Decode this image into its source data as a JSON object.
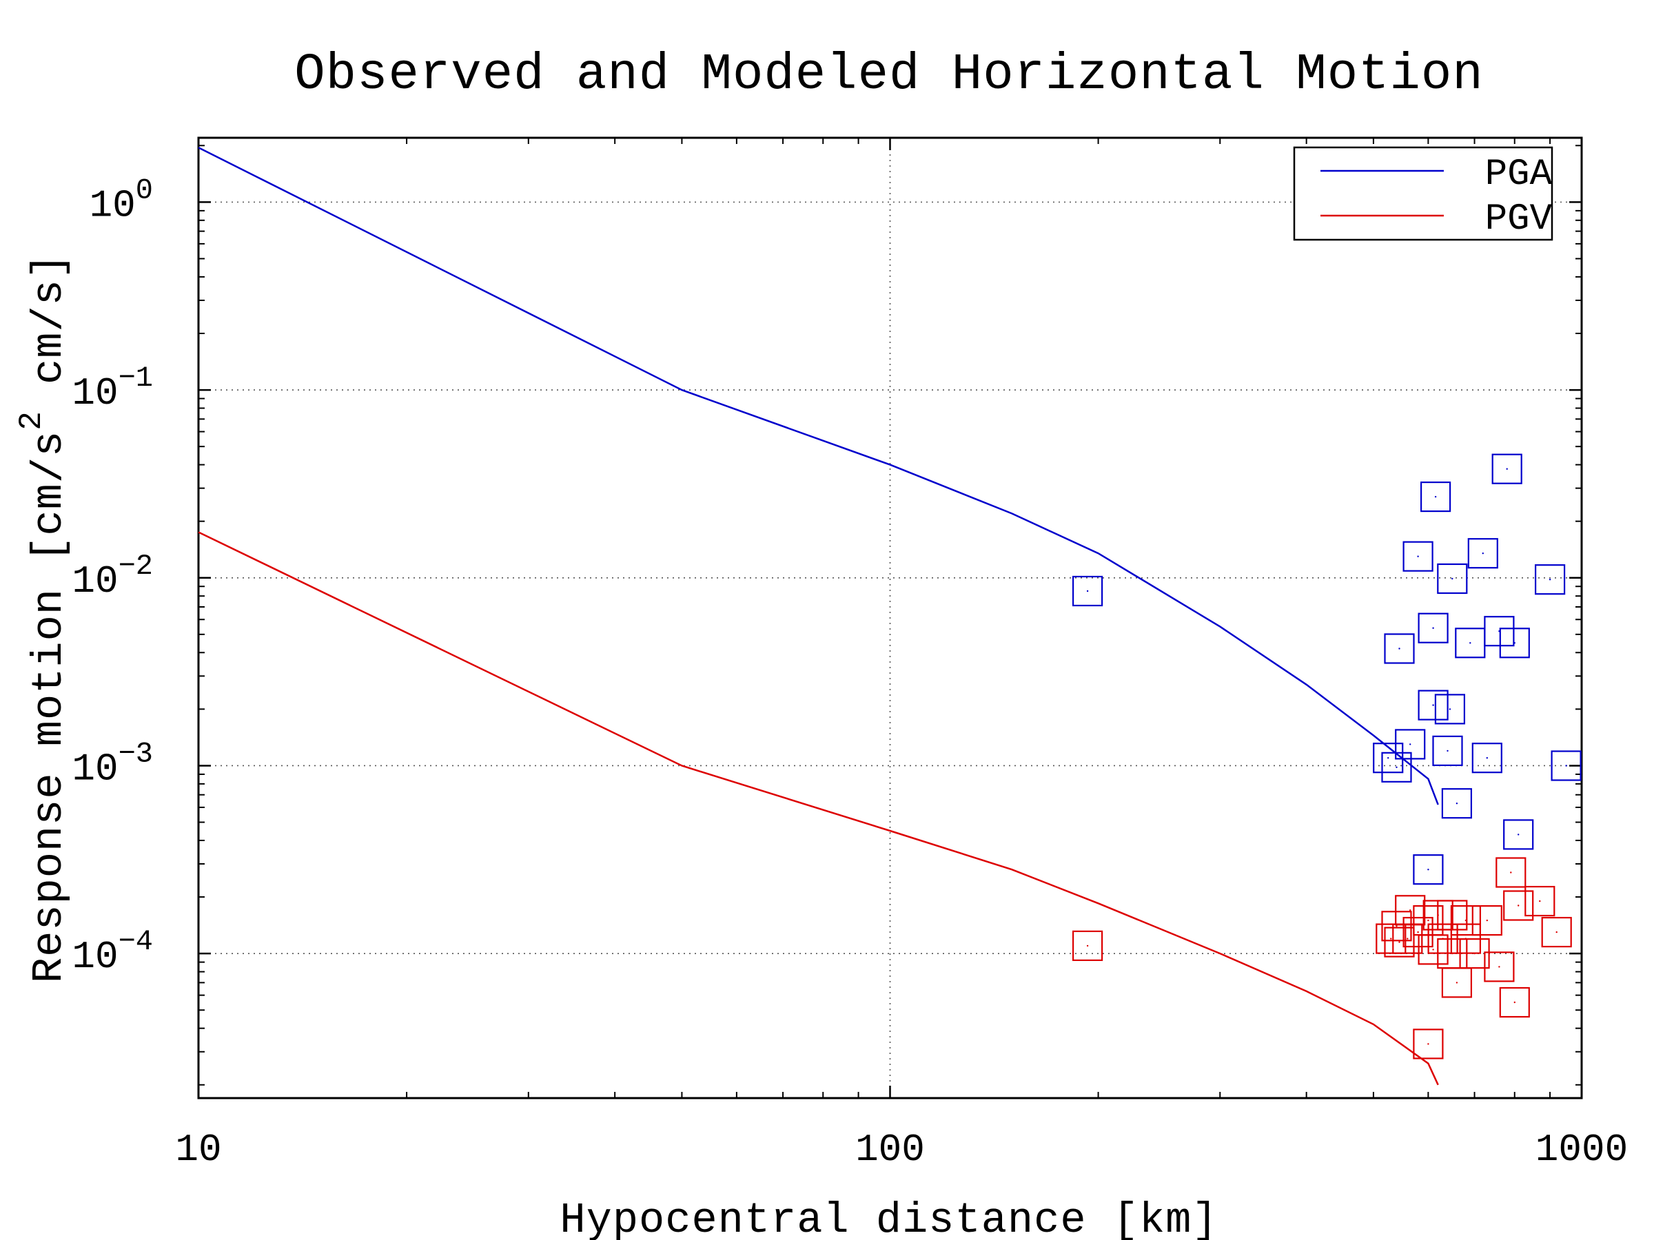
{
  "chart_data": {
    "type": "scatter",
    "title": "Observed and Modeled Horizontal Motion",
    "xlabel": "Hypocentral distance [km]",
    "ylabel": {
      "prefix": "Response motion [cm/s",
      "superscript": "2",
      "suffix": "  cm/s]"
    },
    "x_scale": "log",
    "y_scale": "log",
    "xlim": [
      10,
      1000
    ],
    "ylim": [
      1.7e-05,
      2.2
    ],
    "x_ticks": [
      {
        "value": 10,
        "label": "10"
      },
      {
        "value": 100,
        "label": "100"
      },
      {
        "value": 1000,
        "label": "1000"
      }
    ],
    "y_ticks": [
      {
        "value": 1,
        "base": "10",
        "exp": "0"
      },
      {
        "value": 0.1,
        "base": "10",
        "exp": "−1"
      },
      {
        "value": 0.01,
        "base": "10",
        "exp": "−2"
      },
      {
        "value": 0.001,
        "base": "10",
        "exp": "−3"
      },
      {
        "value": 0.0001,
        "base": "10",
        "exp": "−4"
      }
    ],
    "grid": true,
    "legend_position": "top-right",
    "series": [
      {
        "name": "PGA",
        "color": "#0000cc",
        "model_curve": [
          [
            10,
            1.95
          ],
          [
            50,
            0.1
          ],
          [
            100,
            0.04
          ],
          [
            150,
            0.022
          ],
          [
            200,
            0.0135
          ],
          [
            300,
            0.0055
          ],
          [
            400,
            0.0027
          ],
          [
            500,
            0.00145
          ],
          [
            600,
            0.00085
          ],
          [
            620,
            0.00062
          ]
        ],
        "observed": [
          [
            193,
            0.0085
          ],
          [
            780,
            0.038
          ],
          [
            615,
            0.027
          ],
          [
            580,
            0.013
          ],
          [
            720,
            0.0135
          ],
          [
            650,
            0.0099
          ],
          [
            900,
            0.0098
          ],
          [
            610,
            0.0054
          ],
          [
            760,
            0.0052
          ],
          [
            545,
            0.0042
          ],
          [
            690,
            0.0045
          ],
          [
            800,
            0.0045
          ],
          [
            610,
            0.0021
          ],
          [
            645,
            0.002
          ],
          [
            565,
            0.0013
          ],
          [
            525,
            0.0011
          ],
          [
            540,
            0.00098
          ],
          [
            640,
            0.0012
          ],
          [
            730,
            0.0011
          ],
          [
            950,
            0.001
          ],
          [
            660,
            0.00063
          ],
          [
            810,
            0.00043
          ],
          [
            600,
            0.00028
          ]
        ]
      },
      {
        "name": "PGV",
        "color": "#dd0000",
        "model_curve": [
          [
            10,
            0.0175
          ],
          [
            50,
            0.001
          ],
          [
            100,
            0.00045
          ],
          [
            150,
            0.00028
          ],
          [
            200,
            0.000185
          ],
          [
            300,
            0.0001
          ],
          [
            400,
            6.3e-05
          ],
          [
            500,
            4.2e-05
          ],
          [
            600,
            2.6e-05
          ],
          [
            620,
            2e-05
          ]
        ],
        "observed": [
          [
            193,
            0.00011
          ],
          [
            790,
            0.00027
          ],
          [
            870,
            0.00019
          ],
          [
            810,
            0.00018
          ],
          [
            565,
            0.00017
          ],
          [
            620,
            0.00016
          ],
          [
            650,
            0.00016
          ],
          [
            540,
            0.00014
          ],
          [
            600,
            0.00015
          ],
          [
            680,
            0.00015
          ],
          [
            730,
            0.00015
          ],
          [
            530,
            0.00012
          ],
          [
            560,
            0.00012
          ],
          [
            580,
            0.00013
          ],
          [
            630,
            0.00012
          ],
          [
            680,
            0.00012
          ],
          [
            920,
            0.00013
          ],
          [
            545,
            0.000115
          ],
          [
            610,
            0.000105
          ],
          [
            650,
            0.0001
          ],
          [
            700,
            0.0001
          ],
          [
            760,
            8.5e-05
          ],
          [
            660,
            7e-05
          ],
          [
            800,
            5.5e-05
          ],
          [
            600,
            3.3e-05
          ]
        ]
      }
    ]
  }
}
